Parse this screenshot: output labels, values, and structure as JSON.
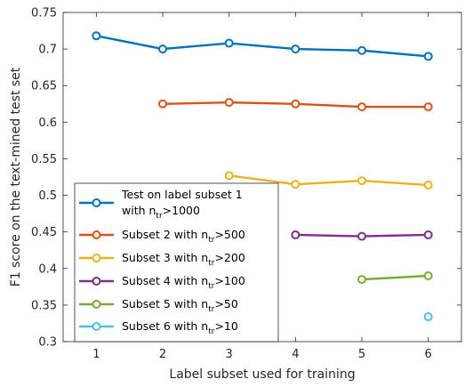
{
  "chart_data": {
    "type": "line",
    "xlabel": "Label subset used for training",
    "ylabel": "F1 score on the text-mined test set",
    "xlim": [
      0.5,
      6.5
    ],
    "ylim": [
      0.3,
      0.75
    ],
    "xticks": [
      1,
      2,
      3,
      4,
      5,
      6
    ],
    "xtick_labels": [
      "1",
      "2",
      "3",
      "4",
      "5",
      "6"
    ],
    "yticks": [
      0.3,
      0.35,
      0.4,
      0.45,
      0.5,
      0.55,
      0.6,
      0.65,
      0.7,
      0.75
    ],
    "ytick_labels": [
      "0.3",
      "0.35",
      "0.4",
      "0.45",
      "0.5",
      "0.55",
      "0.6",
      "0.65",
      "0.7",
      "0.75"
    ],
    "grid": false,
    "legend_position": "bottom-left",
    "series": [
      {
        "legend_lines": [
          [
            {
              "t": "Test on label subset 1"
            }
          ],
          [
            {
              "t": "with n"
            },
            {
              "t": "tr",
              "sub": true
            },
            {
              "t": ">1000"
            }
          ]
        ],
        "color": "#0072BD",
        "x": [
          1,
          2,
          3,
          4,
          5,
          6
        ],
        "y": [
          0.718,
          0.7,
          0.708,
          0.7,
          0.698,
          0.69
        ]
      },
      {
        "legend_lines": [
          [
            {
              "t": "Subset 2 with n"
            },
            {
              "t": "tr",
              "sub": true
            },
            {
              "t": ">500"
            }
          ]
        ],
        "color": "#D95319",
        "x": [
          2,
          3,
          4,
          5,
          6
        ],
        "y": [
          0.625,
          0.627,
          0.625,
          0.621,
          0.621
        ]
      },
      {
        "legend_lines": [
          [
            {
              "t": "Subset 3 with n"
            },
            {
              "t": "tr",
              "sub": true
            },
            {
              "t": ">200"
            }
          ]
        ],
        "color": "#EDB120",
        "x": [
          3,
          4,
          5,
          6
        ],
        "y": [
          0.527,
          0.515,
          0.52,
          0.514
        ]
      },
      {
        "legend_lines": [
          [
            {
              "t": "Subset 4 with n"
            },
            {
              "t": "tr",
              "sub": true
            },
            {
              "t": ">100"
            }
          ]
        ],
        "color": "#7E2F8E",
        "x": [
          4,
          5,
          6
        ],
        "y": [
          0.446,
          0.444,
          0.446
        ]
      },
      {
        "legend_lines": [
          [
            {
              "t": "Subset 5 with n"
            },
            {
              "t": "tr",
              "sub": true
            },
            {
              "t": ">50"
            }
          ]
        ],
        "color": "#77AC30",
        "x": [
          5,
          6
        ],
        "y": [
          0.385,
          0.39
        ]
      },
      {
        "legend_lines": [
          [
            {
              "t": "Subset 6 with n"
            },
            {
              "t": "tr",
              "sub": true
            },
            {
              "t": ">10"
            }
          ]
        ],
        "color": "#4DBEEE",
        "x": [
          6
        ],
        "y": [
          0.334
        ]
      }
    ]
  }
}
